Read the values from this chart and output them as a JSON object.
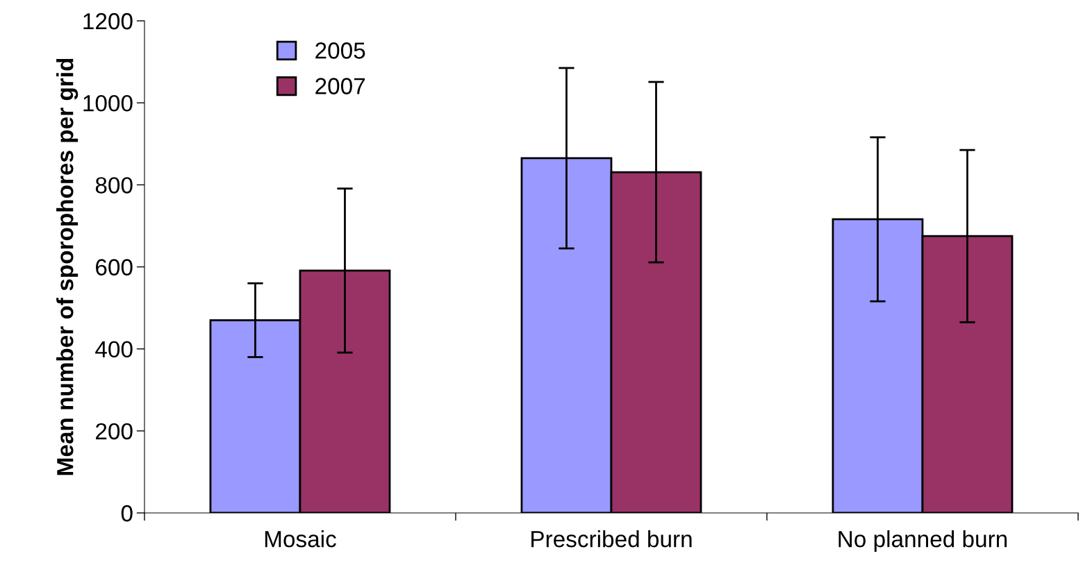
{
  "chart_data": {
    "type": "bar",
    "ylabel": "Mean number of sporophores per grid",
    "categories": [
      "Mosaic",
      "Prescribed burn",
      "No planned burn"
    ],
    "series": [
      {
        "name": "2005",
        "color": "#9999ff",
        "values": [
          470,
          865,
          716
        ],
        "errors": [
          90,
          220,
          200
        ]
      },
      {
        "name": "2007",
        "color": "#993366",
        "values": [
          591,
          831,
          675
        ],
        "errors": [
          200,
          220,
          210
        ]
      }
    ],
    "ylim": [
      0,
      1200
    ],
    "yticks": [
      0,
      200,
      400,
      600,
      800,
      1000,
      1200
    ],
    "grid": false,
    "legend": "top left"
  }
}
